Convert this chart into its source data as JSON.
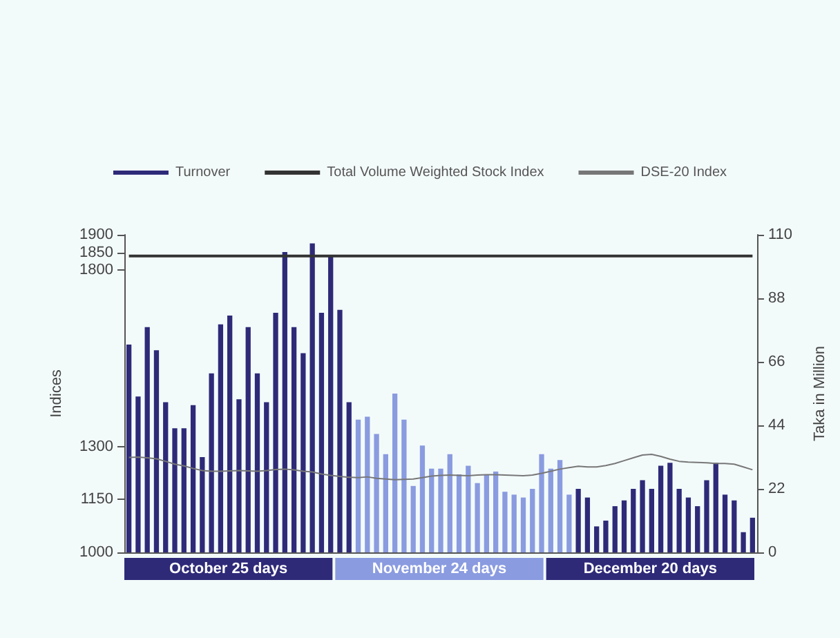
{
  "chart_data": {
    "type": "bar",
    "categories": [
      null,
      null,
      null,
      null,
      null,
      null,
      null,
      null,
      null,
      null,
      null,
      null,
      null,
      null,
      null,
      null,
      null,
      null,
      null,
      null,
      null,
      null,
      null,
      null,
      null,
      null,
      null,
      null,
      null,
      null,
      null,
      null,
      null,
      null,
      null,
      null,
      null,
      null,
      null,
      null,
      null,
      null,
      null,
      null,
      null,
      null,
      null,
      null,
      null,
      null,
      null,
      null,
      null,
      null,
      null,
      null,
      null,
      null,
      null,
      null,
      null,
      null,
      null,
      null,
      null,
      null,
      null,
      null,
      null
    ],
    "series": [
      {
        "name": "Turnover",
        "axis": "y2",
        "color": "#2e2a78",
        "colors": [
          "#2e2a78",
          "#2e2a78",
          "#2e2a78",
          "#2e2a78",
          "#2e2a78",
          "#2e2a78",
          "#2e2a78",
          "#2e2a78",
          "#2e2a78",
          "#2e2a78",
          "#2e2a78",
          "#2e2a78",
          "#2e2a78",
          "#2e2a78",
          "#2e2a78",
          "#2e2a78",
          "#2e2a78",
          "#2e2a78",
          "#2e2a78",
          "#2e2a78",
          "#2e2a78",
          "#2e2a78",
          "#2e2a78",
          "#2e2a78",
          "#2e2a78",
          "#8a9be0",
          "#8a9be0",
          "#8a9be0",
          "#8a9be0",
          "#8a9be0",
          "#8a9be0",
          "#8a9be0",
          "#8a9be0",
          "#8a9be0",
          "#8a9be0",
          "#8a9be0",
          "#8a9be0",
          "#8a9be0",
          "#8a9be0",
          "#8a9be0",
          "#8a9be0",
          "#8a9be0",
          "#8a9be0",
          "#8a9be0",
          "#8a9be0",
          "#8a9be0",
          "#8a9be0",
          "#8a9be0",
          "#8a9be0",
          "#2e2a78",
          "#2e2a78",
          "#2e2a78",
          "#2e2a78",
          "#2e2a78",
          "#2e2a78",
          "#2e2a78",
          "#2e2a78",
          "#2e2a78",
          "#2e2a78",
          "#2e2a78",
          "#2e2a78",
          "#2e2a78",
          "#2e2a78",
          "#2e2a78",
          "#2e2a78",
          "#2e2a78",
          "#2e2a78",
          "#2e2a78",
          "#2e2a78"
        ],
        "values": [
          72,
          54,
          78,
          70,
          52,
          43,
          43,
          51,
          33,
          62,
          79,
          82,
          53,
          78,
          62,
          52,
          83,
          104,
          78,
          69,
          107,
          83,
          103,
          84,
          52,
          46,
          47,
          41,
          34,
          55,
          46,
          23,
          37,
          29,
          29,
          34,
          27,
          30,
          24,
          27,
          28,
          21,
          20,
          19,
          22,
          34,
          29,
          32,
          20,
          22,
          19,
          9,
          11,
          16,
          18,
          22,
          25,
          22,
          30,
          31,
          22,
          19,
          16,
          25,
          31,
          20,
          18,
          7,
          12
        ]
      },
      {
        "name": "Total Volume Weighted Stock Index",
        "type": "line",
        "color": "#333333",
        "values": [
          1840,
          1840,
          1840,
          1840,
          1840,
          1840,
          1840,
          1840,
          1840,
          1840,
          1840,
          1840,
          1840,
          1840,
          1840,
          1840,
          1840,
          1840,
          1840,
          1840,
          1840,
          1840,
          1840,
          1840,
          1840,
          1840,
          1840,
          1840,
          1840,
          1840,
          1840,
          1840,
          1840,
          1840,
          1840,
          1840,
          1840,
          1840,
          1840,
          1840,
          1840,
          1840,
          1840,
          1840,
          1840,
          1840,
          1840,
          1840,
          1840,
          1840,
          1840,
          1840,
          1840,
          1840,
          1840,
          1840,
          1840,
          1840,
          1840,
          1840,
          1840,
          1840,
          1840,
          1840,
          1840,
          1840,
          1840,
          1840,
          1840
        ]
      },
      {
        "name": "DSE-20 Index",
        "type": "line",
        "color": "#777777",
        "values": [
          1269,
          1270,
          1268,
          1265,
          1258,
          1250,
          1245,
          1238,
          1232,
          1230,
          1230,
          1231,
          1232,
          1231,
          1230,
          1232,
          1235,
          1236,
          1234,
          1230,
          1228,
          1222,
          1218,
          1215,
          1213,
          1212,
          1214,
          1210,
          1208,
          1206,
          1207,
          1208,
          1212,
          1216,
          1218,
          1219,
          1218,
          1217,
          1219,
          1220,
          1220,
          1219,
          1218,
          1217,
          1219,
          1224,
          1230,
          1236,
          1240,
          1244,
          1242,
          1242,
          1246,
          1252,
          1260,
          1268,
          1276,
          1278,
          1272,
          1264,
          1258,
          1256,
          1255,
          1254,
          1252,
          1252,
          1250,
          1242,
          1234
        ]
      }
    ],
    "ylabel": "Indices",
    "y2label": "Taka in Million",
    "ylim": [
      1000,
      1900
    ],
    "yticks": [
      1000,
      1150,
      1300,
      1800,
      1850,
      1900
    ],
    "y2lim": [
      0,
      110
    ],
    "y2ticks": [
      0,
      22,
      44,
      66,
      88,
      110
    ],
    "annotations": [
      "October 25 days",
      "November 24 days",
      "December 20 days"
    ],
    "legend": "top",
    "grid": false,
    "marker": "none"
  }
}
